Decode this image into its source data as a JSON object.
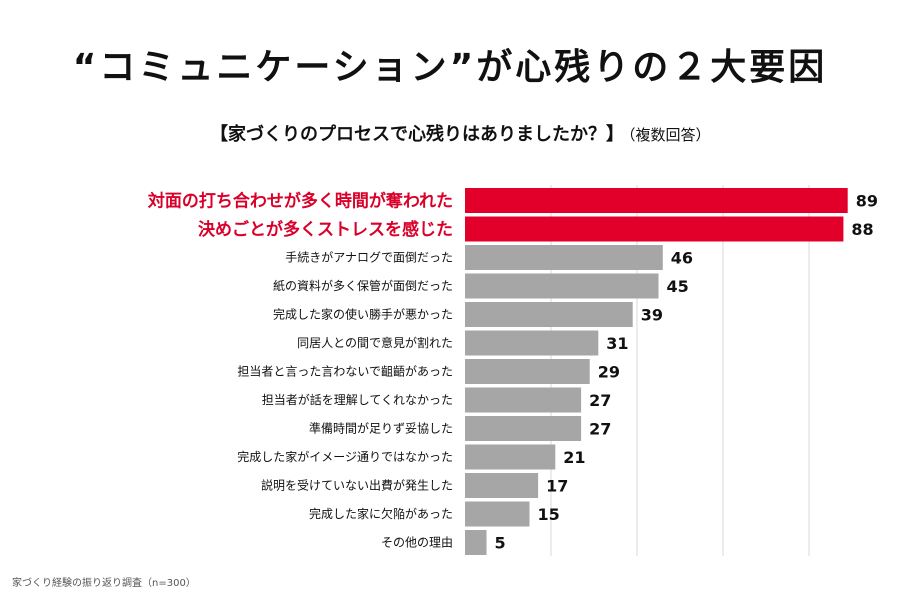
{
  "chart_data": {
    "type": "bar",
    "orientation": "horizontal",
    "title": "“コミュニケーション”が心残りの２大要因",
    "subtitle": "【家づくりのプロセスで心残りはありましたか？】",
    "subtitle_note": "（複数回答）",
    "categories": [
      "対面の打ち合わせが多く時間が奪われた",
      "決めごとが多くストレスを感じた",
      "手続きがアナログで面倒だった",
      "紙の資料が多く保管が面倒だった",
      "完成した家の使い勝手が悪かった",
      "同居人との間で意見が割れた",
      "担当者と言った言わないで齟齬があった",
      "担当者が話を理解してくれなかった",
      "準備時間が足りず妥協した",
      "完成した家がイメージ通りではなかった",
      "説明を受けていない出費が発生した",
      "完成した家に欠陥があった",
      "その他の理由"
    ],
    "values": [
      89,
      88,
      46,
      45,
      39,
      31,
      29,
      27,
      27,
      21,
      17,
      15,
      5
    ],
    "highlight_count": 2,
    "xlim": [
      0,
      90
    ],
    "grid_step": 20,
    "grid": true,
    "colors": {
      "highlight": "#e2002a",
      "default": "#a6a6a6",
      "grid": "#d9d9d9",
      "text": "#111111",
      "highlight_text": "#d9002a"
    },
    "source": "家づくり経験の振り返り調査（n=300）"
  }
}
